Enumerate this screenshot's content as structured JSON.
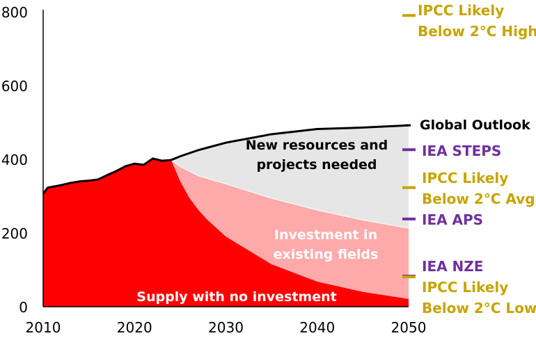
{
  "chart_data": {
    "type": "area",
    "title": "",
    "xlabel": "",
    "ylabel": "",
    "xlim": [
      2010,
      2050
    ],
    "ylim": [
      0,
      800
    ],
    "x_ticks": [
      "2010",
      "2020",
      "2030",
      "2040",
      "2050"
    ],
    "y_ticks": [
      "0",
      "200",
      "400",
      "600",
      "800"
    ],
    "grid": false,
    "colors": {
      "global_outlook": "#000000",
      "new_resources": "#e6e6e6",
      "existing_fields": "#ffaaaa",
      "no_investment": "#ff0000",
      "iea": "#7030a0",
      "ipcc": "#c8a400"
    },
    "global_outlook": {
      "name": "Global Outlook",
      "x": [
        2010,
        2010.5,
        2012,
        2013,
        2014,
        2015,
        2016,
        2017,
        2018,
        2019,
        2020,
        2021,
        2022,
        2023,
        2024,
        2025,
        2027,
        2030,
        2035,
        2040,
        2045,
        2050
      ],
      "y": [
        307,
        323,
        330,
        336,
        340,
        342,
        345,
        357,
        368,
        381,
        388,
        385,
        402,
        396,
        398,
        408,
        425,
        445,
        468,
        482,
        486,
        492
      ]
    },
    "existing_fields": {
      "x": [
        2024,
        2025,
        2027,
        2030,
        2035,
        2040,
        2045,
        2050
      ],
      "y": [
        398,
        380,
        355,
        333,
        294,
        262,
        235,
        213
      ]
    },
    "no_investment": {
      "x": [
        2024,
        2025,
        2026,
        2027,
        2028,
        2030,
        2033,
        2035,
        2040,
        2045,
        2050
      ],
      "y": [
        398,
        340,
        295,
        262,
        235,
        190,
        145,
        115,
        68,
        40,
        21
      ]
    },
    "area_labels": {
      "new_resources": [
        "New resources and",
        "projects needed"
      ],
      "existing_fields": [
        "Investment in",
        "existing fields"
      ],
      "no_investment": "Supply with no investment"
    },
    "markers_2050": [
      {
        "name": "IPCC Likely Below 2°C High",
        "lines": [
          "IPCC Likely",
          "Below 2°C High"
        ],
        "value": 790,
        "group": "ipcc"
      },
      {
        "name": "IEA STEPS",
        "lines": [
          "IEA STEPS"
        ],
        "value": 426,
        "group": "iea"
      },
      {
        "name": "IPCC Likely Below 2°C Avg",
        "lines": [
          "IPCC Likely",
          "Below 2°C Avg"
        ],
        "value": 323,
        "group": "ipcc"
      },
      {
        "name": "IEA APS",
        "lines": [
          "IEA APS"
        ],
        "value": 238,
        "group": "iea"
      },
      {
        "name": "IEA NZE",
        "lines": [
          "IEA NZE"
        ],
        "value": 83,
        "group": "iea"
      },
      {
        "name": "IPCC Likely Below 2°C Low",
        "lines": [
          "IPCC Likely",
          "Below 2°C Low"
        ],
        "value": 81,
        "group": "ipcc"
      }
    ]
  }
}
